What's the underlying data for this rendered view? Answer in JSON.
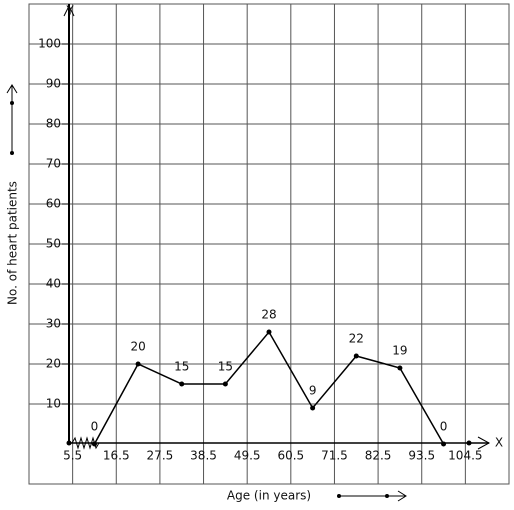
{
  "chart_data": {
    "type": "line",
    "x_axis_letter": "X",
    "y_axis_letter": "Y",
    "xlabel": "Age (in years)",
    "ylabel": "No. of heart patients",
    "x": [
      11,
      22,
      33,
      44,
      55,
      66,
      77,
      88,
      99
    ],
    "values": [
      0,
      20,
      15,
      15,
      28,
      9,
      22,
      19,
      0
    ],
    "color": "#000000",
    "xlim": [
      -5.5,
      115.5
    ],
    "ylim": [
      -10,
      110
    ],
    "xticks": [
      5.5,
      16.5,
      27.5,
      38.5,
      49.5,
      60.5,
      71.5,
      82.5,
      93.5,
      104.5
    ],
    "yticks": [
      10,
      20,
      30,
      40,
      50,
      60,
      70,
      80,
      90,
      100
    ],
    "grid": true
  }
}
